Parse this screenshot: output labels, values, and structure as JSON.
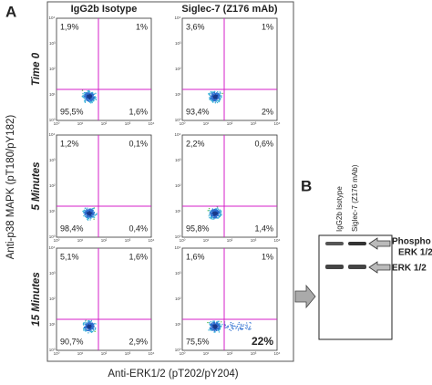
{
  "panel_a": {
    "label": "A",
    "columns": [
      "IgG2b Isotype",
      "Siglec-7 (Z176 mAb)"
    ],
    "y_axis_label": "Anti-p38 MAPK (pT180/pY182)",
    "x_axis_label": "Anti-ERK1/2 (pT202/pY204)",
    "axis_ticks": [
      "10⁰",
      "10¹",
      "10²",
      "10³",
      "10⁴"
    ],
    "rows": [
      {
        "label": "Time 0",
        "plots": [
          {
            "ul": "1,9%",
            "ur": "1%",
            "ll": "95,5%",
            "lr": "1,6%"
          },
          {
            "ul": "3,6%",
            "ur": "1%",
            "ll": "93,4%",
            "lr": "2%"
          }
        ]
      },
      {
        "label": "5 Minutes",
        "plots": [
          {
            "ul": "1,2%",
            "ur": "0,1%",
            "ll": "98,4%",
            "lr": "0,4%"
          },
          {
            "ul": "2,2%",
            "ur": "0,6%",
            "ll": "95,8%",
            "lr": "1,4%"
          }
        ]
      },
      {
        "label": "15 Minutes",
        "plots": [
          {
            "ul": "5,1%",
            "ur": "1,6%",
            "ll": "90,7%",
            "lr": "2,9%"
          },
          {
            "ul": "1,6%",
            "ur": "1%",
            "ll": "75,5%",
            "lr": "22%"
          }
        ]
      }
    ]
  },
  "panel_b": {
    "label": "B",
    "lanes": [
      "IgG2b Isotype",
      "Siglec-7 (Z176 mAb)"
    ],
    "bands": [
      [
        "Phospho",
        "ERK 1/2"
      ],
      [
        "ERK 1/2"
      ]
    ]
  }
}
